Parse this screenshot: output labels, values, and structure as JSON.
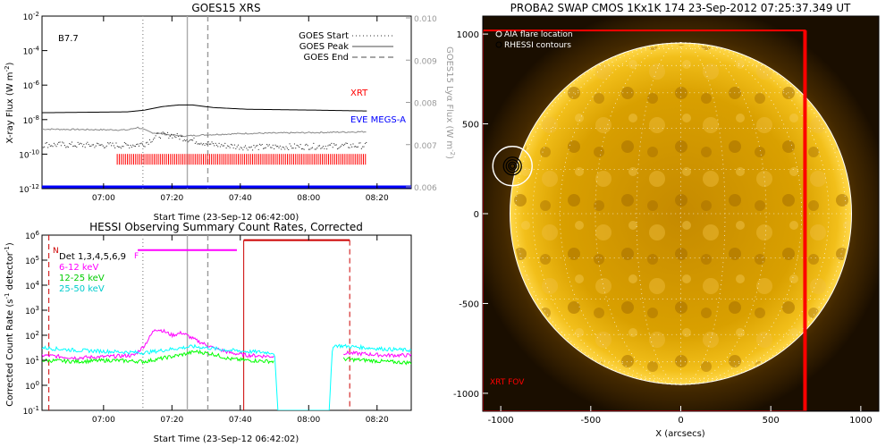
{
  "chart_data": [
    {
      "type": "line",
      "title": "GOES15 XRS",
      "xlabel": "Start Time (23-Sep-12 06:42:00)",
      "ylabel": "X-ray Flux (W m",
      "y2label": "GOES15 Lyα Flux (W m",
      "x_ticks": [
        "07:00",
        "07:20",
        "07:40",
        "08:00",
        "08:20"
      ],
      "x_tick_minutes": [
        18,
        38,
        58,
        78,
        98
      ],
      "xlim_minutes": [
        0,
        108
      ],
      "ylim_log": [
        -12,
        -2
      ],
      "y_tick_exponents": [
        -12,
        -10,
        -8,
        -6,
        -4,
        -2
      ],
      "y2_ticks": [
        "0.006",
        "0.007",
        "0.008",
        "0.009",
        "0.010"
      ],
      "annotation": "B7.7",
      "legend": [
        "GOES Start",
        "GOES Peak",
        "GOES End"
      ],
      "legend_position": "top-right",
      "markers_minutes": {
        "start": 29.5,
        "peak": 42.5,
        "end": 48.5
      },
      "series": [
        {
          "name": "XRT",
          "color": "#ff0000",
          "x": [
            22,
            95
          ],
          "y": [
            -10.3,
            -10.3
          ],
          "style": "ticks"
        },
        {
          "name": "EVE MEGS-A",
          "color": "#0000ff",
          "x": [
            0,
            108
          ],
          "y": [
            -12.0,
            -12.0
          ]
        }
      ],
      "long_channel_x": [
        0,
        25,
        30,
        35,
        40,
        44,
        50,
        60,
        80,
        95
      ],
      "long_channel_y": [
        -7.6,
        -7.55,
        -7.45,
        -7.25,
        -7.15,
        -7.15,
        -7.3,
        -7.4,
        -7.45,
        -7.5
      ],
      "short_channel_x": [
        0,
        25,
        28,
        32,
        38,
        42,
        46,
        52,
        60,
        80,
        95
      ],
      "short_channel_y": [
        -8.55,
        -8.6,
        -8.45,
        -8.75,
        -8.9,
        -8.95,
        -8.9,
        -8.85,
        -8.8,
        -8.75,
        -8.7
      ],
      "lya_x": [
        0,
        25,
        30,
        34,
        38,
        44,
        50,
        60,
        80,
        95
      ],
      "lya_y": [
        -9.45,
        -9.5,
        -9.4,
        -8.9,
        -8.9,
        -9.2,
        -9.45,
        -9.6,
        -9.55,
        -9.5
      ]
    },
    {
      "type": "line",
      "title": "HESSI Observing Summary Count Rates, Corrected",
      "xlabel": "Start Time (23-Sep-12 06:42:02)",
      "ylabel": "Corrected Count Rate (s",
      "ylabel_suffix": "detector",
      "x_ticks": [
        "07:00",
        "07:20",
        "07:40",
        "08:00",
        "08:20"
      ],
      "x_tick_minutes": [
        18,
        38,
        58,
        78,
        98
      ],
      "xlim_minutes": [
        0,
        108
      ],
      "ylim_log": [
        -1,
        6
      ],
      "y_tick_exponents": [
        -1,
        0,
        1,
        2,
        3,
        4,
        5,
        6
      ],
      "legend_title": "Det 1,3,4,5,6,9",
      "legend_position": "top-left",
      "flags": {
        "night": "N",
        "flare": "F"
      },
      "markers_minutes": {
        "start": 29.5,
        "peak": 42.5,
        "end": 48.5
      },
      "series": [
        {
          "name": "6-12 keV",
          "color": "#ff00ff",
          "x": [
            0,
            10,
            20,
            27,
            30,
            33,
            35,
            38,
            41,
            45,
            50,
            55,
            60,
            68,
            72,
            84,
            88,
            95,
            100,
            108
          ],
          "y": [
            1.2,
            1.1,
            1.15,
            1.2,
            1.6,
            2.25,
            2.2,
            2.0,
            2.1,
            1.8,
            1.5,
            1.3,
            1.2,
            1.15,
            null,
            null,
            1.3,
            1.25,
            1.2,
            1.2
          ]
        },
        {
          "name": "12-25 keV",
          "color": "#00ff00",
          "x": [
            0,
            10,
            20,
            30,
            40,
            45,
            50,
            55,
            60,
            68,
            72,
            84,
            88,
            95,
            100,
            108
          ],
          "y": [
            1.0,
            0.95,
            1.0,
            0.95,
            1.2,
            1.35,
            1.25,
            1.05,
            1.0,
            0.95,
            null,
            null,
            1.05,
            1.0,
            0.95,
            0.9
          ]
        },
        {
          "name": "25-50 keV",
          "color": "#00ffff",
          "x": [
            0,
            10,
            20,
            30,
            38,
            44,
            48,
            55,
            60,
            68,
            69,
            84,
            85,
            90,
            95,
            100,
            108
          ],
          "y": [
            1.5,
            1.4,
            1.35,
            1.3,
            1.45,
            1.55,
            1.5,
            1.4,
            1.35,
            1.3,
            -1,
            -1,
            1.6,
            1.55,
            1.5,
            1.45,
            1.4
          ]
        }
      ],
      "flare_bar": {
        "color": "#ff00ff",
        "x": [
          28,
          57
        ],
        "y": 5.4
      },
      "saa_bar": {
        "color": "#cc0000",
        "x": [
          59,
          90
        ],
        "y": 5.8
      }
    },
    {
      "type": "heatmap",
      "title": "PROBA2 SWAP CMOS 1Kx1K 174 23-Sep-2012 07:25:37.349 UT",
      "xlabel": "X (arcsecs)",
      "x_ticks": [
        "-1000",
        "-500",
        "0",
        "500",
        "1000"
      ],
      "y_ticks": [
        "1000",
        "500",
        "0",
        "-500",
        "-1000"
      ],
      "tick_values": [
        -1000,
        -500,
        0,
        500,
        1000
      ],
      "xlim": [
        -1100,
        1100
      ],
      "ylim": [
        -1100,
        1100
      ],
      "legend": [
        "AIA flare location",
        "RHESSI contours"
      ],
      "legend_position": "top-left",
      "fov_label": "XRT FOV",
      "fov_color": "#ff0000",
      "fov_box_arcsec": {
        "x": [
          -1100,
          690
        ],
        "y": [
          -1100,
          1020
        ]
      },
      "flare_location_arcsec": {
        "x": -935,
        "y": 265
      },
      "sun_radius_arcsec": 950,
      "colors": {
        "disk": "#d9a000",
        "corona": "#5a3600",
        "background": "#1a0e00"
      }
    }
  ]
}
